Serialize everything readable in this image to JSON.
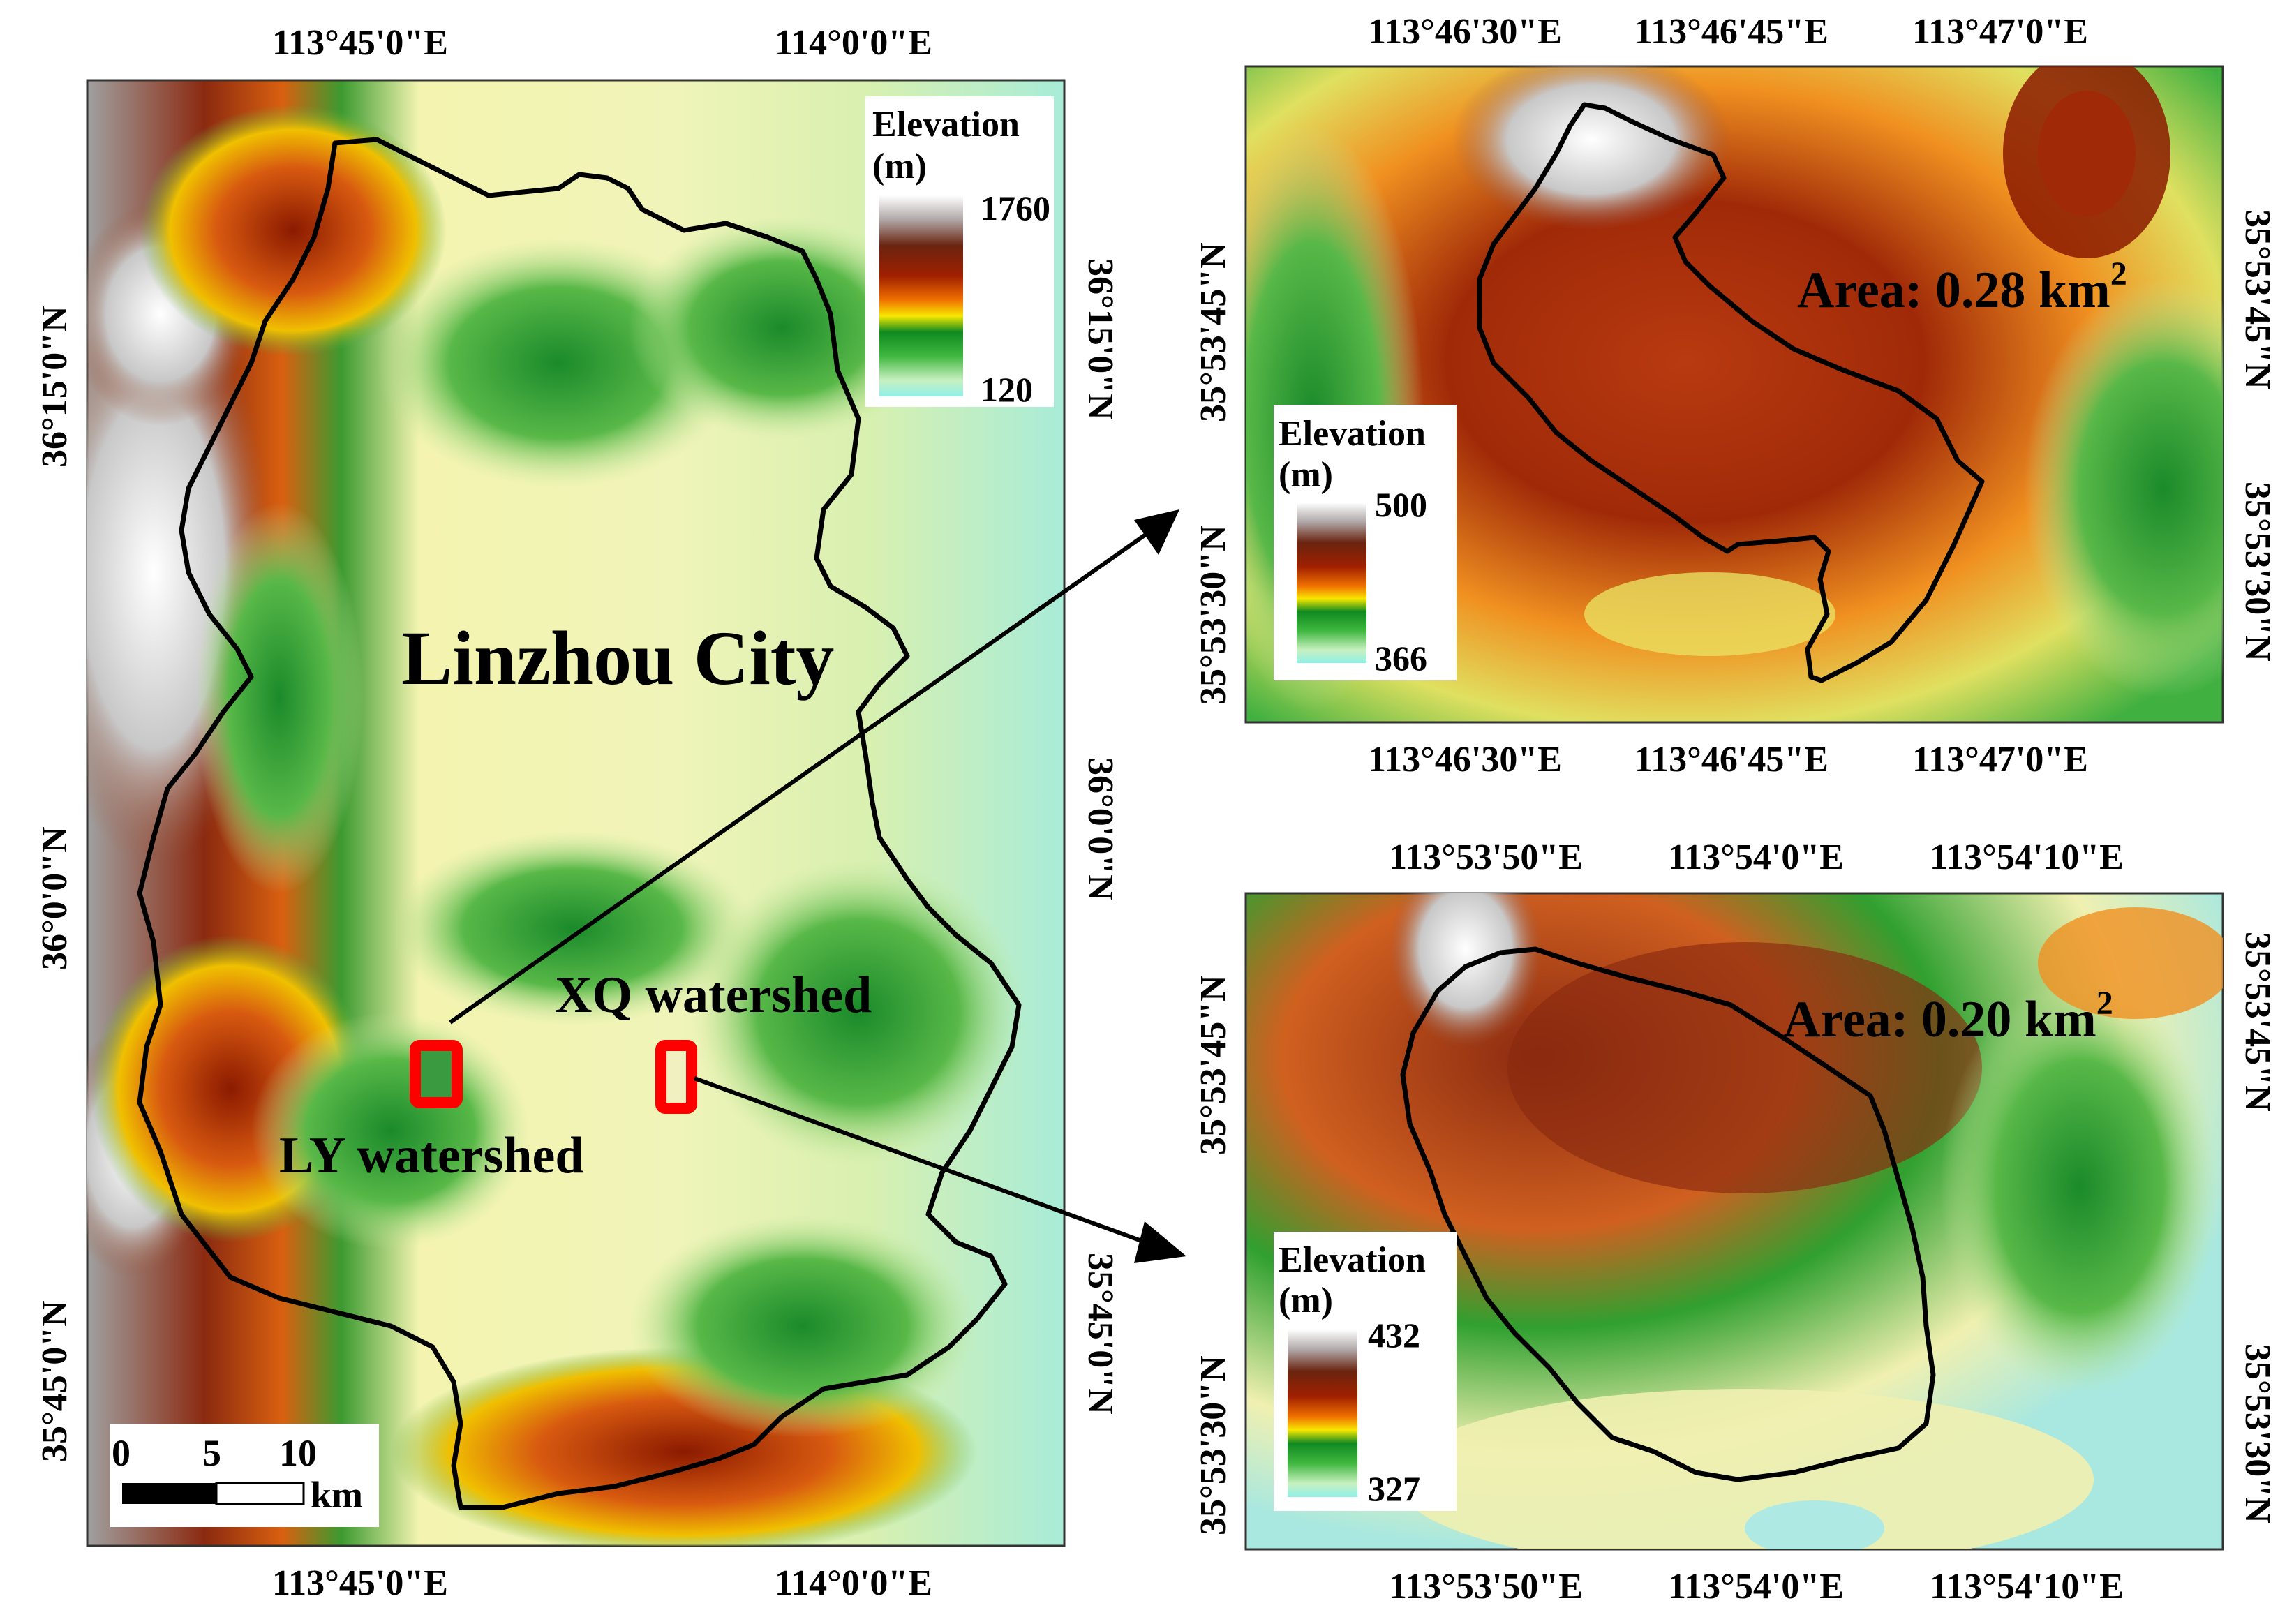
{
  "main_map": {
    "city_label": "Linzhou City",
    "xq_label": "XQ watershed",
    "ly_label": "LY watershed",
    "top_lon_labels": [
      "113°45'0\"E",
      "114°0'0\"E"
    ],
    "bottom_lon_labels": [
      "113°45'0\"E",
      "114°0'0\"E"
    ],
    "left_lat_labels": [
      "36°15'0\"N",
      "36°0'0\"N",
      "35°45'0\"N"
    ],
    "right_lat_labels": [
      "36°15'0\"N",
      "36°0'0\"N",
      "35°45'0\"N"
    ],
    "legend": {
      "title_line1": "Elevation",
      "title_line2": "(m)",
      "max": "1760",
      "min": "120"
    },
    "scale_bar": {
      "ticks": [
        "0",
        "5",
        "10"
      ],
      "unit": "km"
    }
  },
  "inset_top": {
    "top_lon_labels": [
      "113°46'30\"E",
      "113°46'45\"E",
      "113°47'0\"E"
    ],
    "bottom_lon_labels": [
      "113°46'30\"E",
      "113°46'45\"E",
      "113°47'0\"E"
    ],
    "left_lat_labels": [
      "35°53'45\"N",
      "35°53'30\"N"
    ],
    "right_lat_labels": [
      "35°53'45\"N",
      "35°53'30\"N"
    ],
    "area_text": "Area: 0.28 km",
    "area_sup": "2",
    "legend": {
      "title_line1": "Elevation",
      "title_line2": "(m)",
      "max": "500",
      "min": "366"
    }
  },
  "inset_bottom": {
    "top_lon_labels": [
      "113°53'50\"E",
      "113°54'0\"E",
      "113°54'10\"E"
    ],
    "bottom_lon_labels": [
      "113°53'50\"E",
      "113°54'0\"E",
      "113°54'10\"E"
    ],
    "left_lat_labels": [
      "35°53'45\"N",
      "35°53'30\"N"
    ],
    "right_lat_labels": [
      "35°53'45\"N",
      "35°53'30\"N"
    ],
    "area_text": "Area: 0.20 km",
    "area_sup": "2",
    "legend": {
      "title_line1": "Elevation",
      "title_line2": "(m)",
      "max": "432",
      "min": "327"
    }
  },
  "colors": {
    "watershed_box": "#ff0000",
    "boundary": "#000000",
    "ramp": [
      "#7fe8d8",
      "#d8f5a8",
      "#18a028",
      "#f0e000",
      "#e06000",
      "#8b1800",
      "#6a3a20",
      "#ffffff"
    ]
  }
}
